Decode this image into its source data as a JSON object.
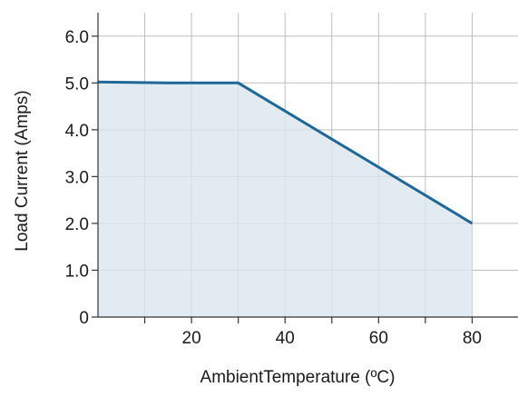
{
  "chart_data": {
    "type": "area",
    "title": "",
    "xlabel": "AmbientTemperature (ºC)",
    "ylabel": "Load Current (Amps)",
    "xlim": [
      0,
      90
    ],
    "ylim": [
      0,
      6.5
    ],
    "x_ticks": [
      20,
      40,
      60,
      80
    ],
    "x_tick_labels": [
      "20",
      "40",
      "60",
      "80"
    ],
    "x_minor_ticks": [
      10,
      30,
      50,
      70
    ],
    "y_ticks": [
      0,
      1,
      2,
      3,
      4,
      5,
      6
    ],
    "y_tick_labels": [
      "0",
      "1.0",
      "2.0",
      "3.0",
      "4.0",
      "5.0",
      "6.0"
    ],
    "grid": true,
    "series": [
      {
        "x": [
          0,
          15,
          30,
          80
        ],
        "y": [
          5.02,
          5.0,
          5.0,
          2.0
        ],
        "color": "#1f6797",
        "fill": "#d9e6ed"
      }
    ]
  }
}
